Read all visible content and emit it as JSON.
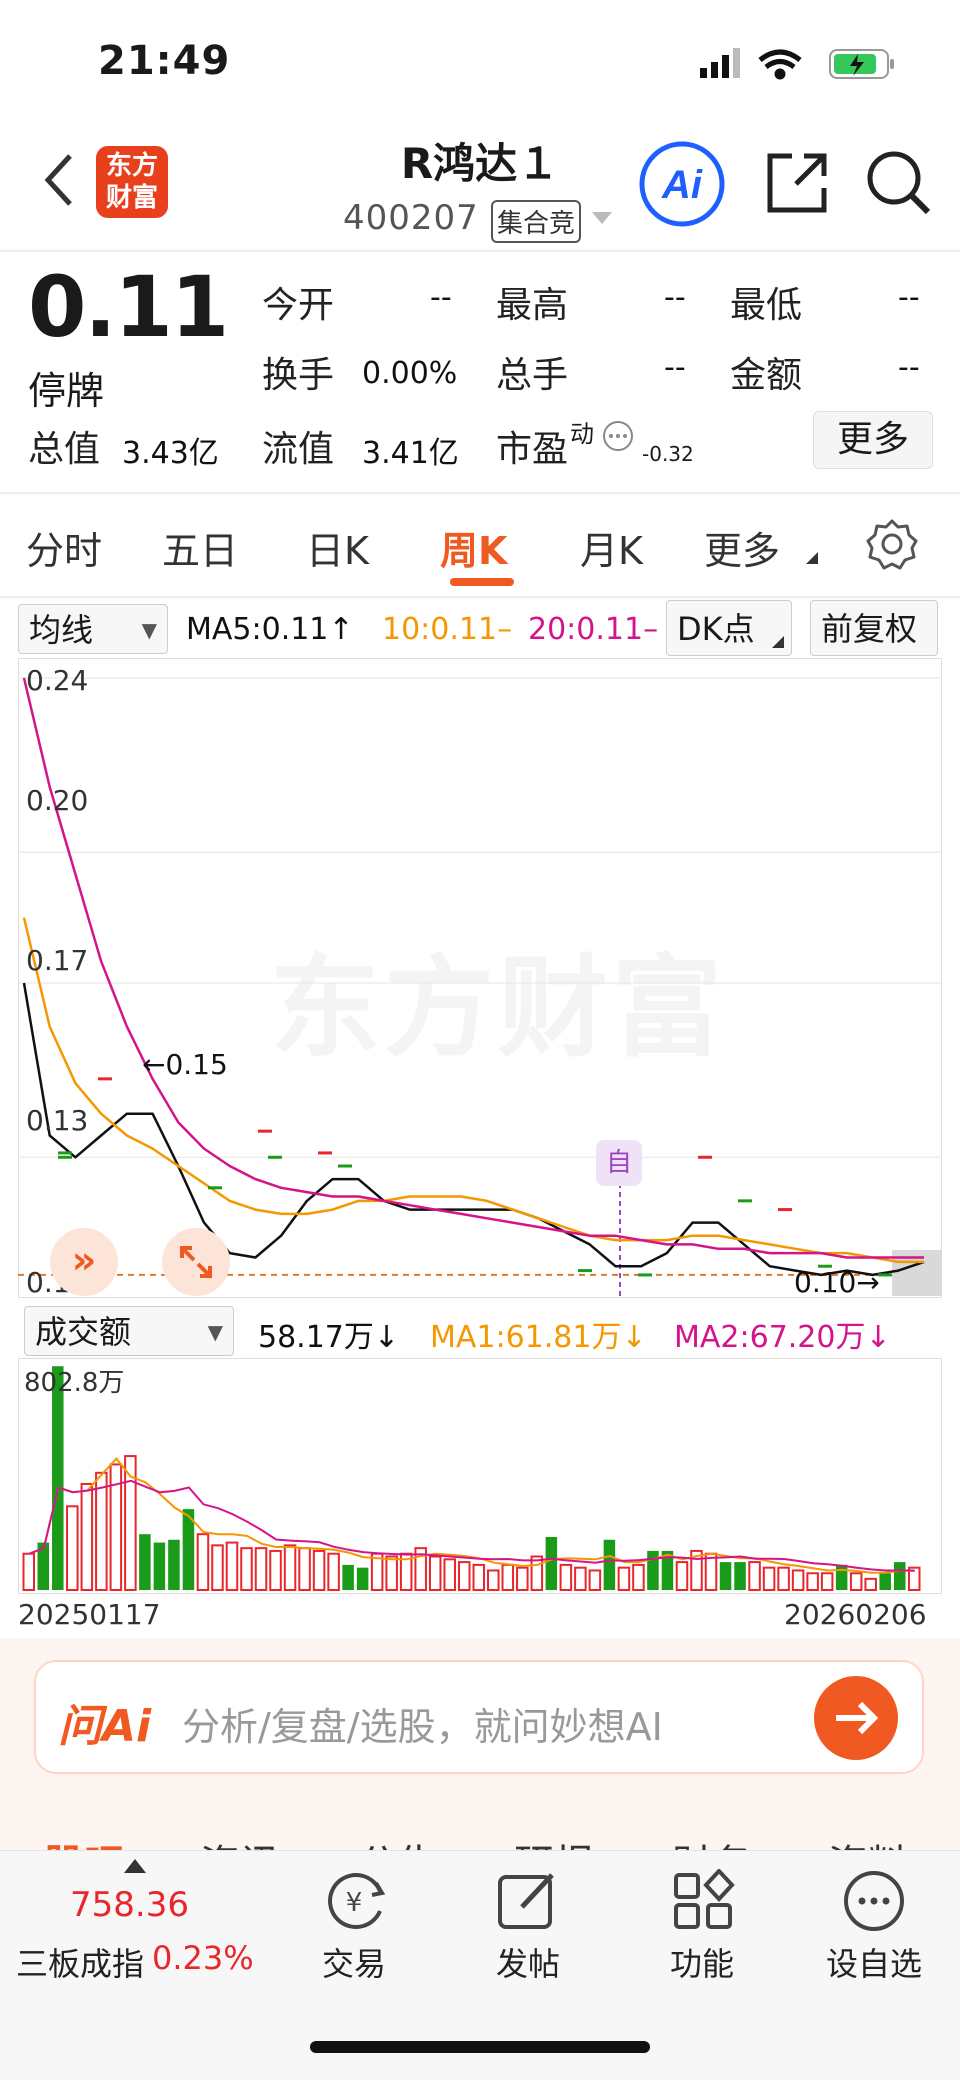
{
  "status_bar": {
    "time": "21:49"
  },
  "header": {
    "logo_text": "东方财富",
    "title": "R鸿达１",
    "code": "400207",
    "auction_label": "集合竞"
  },
  "quote": {
    "price": "0.11",
    "status": "停牌",
    "total_value_label": "总值",
    "total_value": "3.43亿",
    "float_value_label": "流值",
    "float_value": "3.41亿",
    "pe_label": "市盈",
    "pe_sup": "动",
    "pe_value": "-0.32",
    "open_label": "今开",
    "open_value": "--",
    "high_label": "最高",
    "high_value": "--",
    "low_label": "最低",
    "low_value": "--",
    "turnover_label": "换手",
    "turnover_value": "0.00%",
    "volume_label": "总手",
    "volume_value": "--",
    "amount_label": "金额",
    "amount_value": "--",
    "more_label": "更多"
  },
  "tabs": [
    {
      "label": "分时"
    },
    {
      "label": "五日"
    },
    {
      "label": "日K"
    },
    {
      "label": "周K"
    },
    {
      "label": "月K"
    },
    {
      "label": "更多"
    }
  ],
  "indicators": {
    "ma_select": "均线",
    "ma5": "MA5:0.11↑",
    "ma10": "10:0.11–",
    "ma20": "20:0.11–",
    "dk_label": "DK点",
    "adjust_label": "前复权",
    "vol_select": "成交额",
    "vol_current": "58.17万↓",
    "vol_ma1": "MA1:61.81万↓",
    "vol_ma2": "MA2:67.20万↓",
    "vol_max_label": "802.8万",
    "date_start": "20250117",
    "date_end": "20260206"
  },
  "colors": {
    "accent": "#f05a22",
    "up": "#e8262c",
    "down": "#1a9b1a",
    "ma10": "#f39800",
    "ma20": "#d4148a",
    "ai_blue": "#1f5fff"
  },
  "chart_data": {
    "type": "line",
    "ylim": [
      0.1,
      0.24
    ],
    "y_ticks": [
      "0.24",
      "0.20",
      "0.17",
      "0.13",
      "0.10"
    ],
    "annotations": {
      "high_label": "0.15",
      "low_label": "0.10",
      "marker_label": "自"
    },
    "series": [
      {
        "values": [
          0.17,
          0.135,
          0.13,
          0.135,
          0.14,
          0.14,
          0.128,
          0.115,
          0.108,
          0.107,
          0.112,
          0.12,
          0.125,
          0.125,
          0.12,
          0.118,
          0.118,
          0.118,
          0.118,
          0.118,
          0.116,
          0.113,
          0.11,
          0.105,
          0.105,
          0.108,
          0.115,
          0.115,
          0.11,
          0.105,
          0.104,
          0.103,
          0.104,
          0.103,
          0.104,
          0.106
        ]
      },
      {
        "values": [
          0.185,
          0.16,
          0.147,
          0.14,
          0.135,
          0.132,
          0.128,
          0.124,
          0.12,
          0.118,
          0.117,
          0.117,
          0.118,
          0.12,
          0.12,
          0.121,
          0.121,
          0.121,
          0.12,
          0.118,
          0.116,
          0.114,
          0.112,
          0.111,
          0.111,
          0.111,
          0.112,
          0.112,
          0.111,
          0.11,
          0.109,
          0.108,
          0.108,
          0.107,
          0.106,
          0.106
        ]
      },
      {
        "values": [
          0.24,
          0.215,
          0.195,
          0.175,
          0.16,
          0.148,
          0.138,
          0.132,
          0.128,
          0.125,
          0.123,
          0.122,
          0.121,
          0.121,
          0.12,
          0.119,
          0.118,
          0.117,
          0.116,
          0.115,
          0.114,
          0.113,
          0.112,
          0.112,
          0.111,
          0.11,
          0.11,
          0.109,
          0.109,
          0.108,
          0.108,
          0.108,
          0.107,
          0.107,
          0.107,
          0.107
        ]
      }
    ],
    "volume": {
      "max": 802.8,
      "values": [
        130,
        170,
        802,
        300,
        380,
        420,
        450,
        480,
        200,
        170,
        180,
        290,
        200,
        160,
        170,
        150,
        150,
        140,
        160,
        150,
        140,
        130,
        90,
        80,
        130,
        120,
        130,
        150,
        120,
        110,
        100,
        90,
        70,
        90,
        80,
        120,
        190,
        90,
        80,
        70,
        180,
        80,
        90,
        140,
        140,
        100,
        140,
        130,
        100,
        100,
        100,
        80,
        80,
        70,
        60,
        60,
        90,
        60,
        40,
        60,
        100,
        80
      ]
    }
  },
  "ai_bar": {
    "logo_text": "问Ai",
    "placeholder": "分析/复盘/选股，就问妙想AI"
  },
  "sub_tabs": [
    "股吧",
    "资讯",
    "公告",
    "研报",
    "财务",
    "资料"
  ],
  "bottom_nav": {
    "index_value": "758.36",
    "index_name": "三板成指",
    "index_change": "0.23%",
    "items": [
      {
        "label": "交易"
      },
      {
        "label": "发帖"
      },
      {
        "label": "功能"
      },
      {
        "label": "设自选"
      }
    ]
  }
}
